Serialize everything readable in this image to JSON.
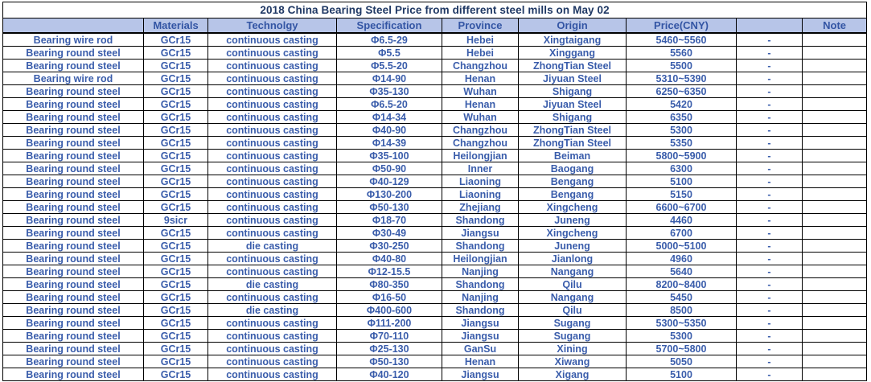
{
  "title": "2018 China Bearing Steel Price from different steel mills on May 02",
  "colors": {
    "title_text": "#1f3864",
    "header_bg": "#b7c5e8",
    "header_text": "#3355a4",
    "data_text": "#3a5dab",
    "border": "#000000"
  },
  "table": {
    "columns": [
      "",
      "Materials",
      "Technolgy",
      "Specification",
      "Province",
      "Origin",
      "Price(CNY)",
      "",
      "Note"
    ],
    "rows": [
      [
        "Bearing wire rod",
        "GCr15",
        "continuous casting",
        "Φ6.5-29",
        "Hebei",
        "Xingtaigang",
        "5460~5560",
        "-",
        ""
      ],
      [
        "Bearing round steel",
        "GCr15",
        "continuous casting",
        "Φ5.5",
        "Hebei",
        "Xinggang",
        "5560",
        "-",
        ""
      ],
      [
        "Bearing round steel",
        "GCr15",
        "continuous casting",
        "Φ5.5-20",
        "Changzhou",
        "ZhongTian Steel",
        "5500",
        "-",
        ""
      ],
      [
        "Bearing wire rod",
        "GCr15",
        "continuous casting",
        "Φ14-90",
        "Henan",
        "Jiyuan Steel",
        "5310~5390",
        "-",
        ""
      ],
      [
        "Bearing round steel",
        "GCr15",
        "continuous casting",
        "Φ35-130",
        "Wuhan",
        "Shigang",
        "6250~6350",
        "-",
        ""
      ],
      [
        "Bearing round steel",
        "GCr15",
        "continuous casting",
        "Φ6.5-20",
        "Henan",
        "Jiyuan Steel",
        "5420",
        "-",
        ""
      ],
      [
        "Bearing round steel",
        "GCr15",
        "continuous casting",
        "Φ14-34",
        "Wuhan",
        "Shigang",
        "6350",
        "-",
        ""
      ],
      [
        "Bearing round steel",
        "GCr15",
        "continuous casting",
        "Φ40-90",
        "Changzhou",
        "ZhongTian Steel",
        "5300",
        "-",
        ""
      ],
      [
        "Bearing round steel",
        "GCr15",
        "continuous casting",
        "Φ14-39",
        "Changzhou",
        "ZhongTian Steel",
        "5350",
        "-",
        ""
      ],
      [
        "Bearing round steel",
        "GCr15",
        "continuous casting",
        "Φ35-100",
        "Heilongjian",
        "Beiman",
        "5800~5900",
        "-",
        ""
      ],
      [
        "Bearing round steel",
        "GCr15",
        "continuous casting",
        "Φ50-90",
        "Inner",
        "Baogang",
        "6300",
        "-",
        ""
      ],
      [
        "Bearing round steel",
        "GCr15",
        "continuous casting",
        "Φ40-129",
        "Liaoning",
        "Bengang",
        "5100",
        "-",
        ""
      ],
      [
        "Bearing round steel",
        "GCr15",
        "continuous casting",
        "Φ130-200",
        "Liaoning",
        "Bengang",
        "5150",
        "-",
        ""
      ],
      [
        "Bearing round steel",
        "GCr15",
        "continuous casting",
        "Φ50-130",
        "Zhejiang",
        "Xingcheng",
        "6600~6700",
        "-",
        ""
      ],
      [
        "Bearing round steel",
        "9sicr",
        "continuous casting",
        "Φ18-70",
        "Shandong",
        "Juneng",
        "4460",
        "-",
        ""
      ],
      [
        "Bearing round steel",
        "GCr15",
        "continuous casting",
        "Φ30-49",
        "Jiangsu",
        "Xingcheng",
        "6700",
        "-",
        ""
      ],
      [
        "Bearing round steel",
        "GCr15",
        "die casting",
        "Φ30-250",
        "Shandong",
        "Juneng",
        "5000~5100",
        "-",
        ""
      ],
      [
        "Bearing round steel",
        "GCr15",
        "continuous casting",
        "Φ40-80",
        "Heilongjian",
        "Jianlong",
        "4960",
        "-",
        ""
      ],
      [
        "Bearing round steel",
        "GCr15",
        "continuous casting",
        "Φ12-15.5",
        "Nanjing",
        "Nangang",
        "5640",
        "-",
        ""
      ],
      [
        "Bearing round steel",
        "GCr15",
        "die casting",
        "Φ80-350",
        "Shandong",
        "Qilu",
        "8200~8400",
        "-",
        ""
      ],
      [
        "Bearing round steel",
        "GCr15",
        "continuous casting",
        "Φ16-50",
        "Nanjing",
        "Nangang",
        "5450",
        "-",
        ""
      ],
      [
        "Bearing round steel",
        "GCr15",
        "die casting",
        "Φ400-600",
        "Shandong",
        "Qilu",
        "8500",
        "-",
        ""
      ],
      [
        "Bearing round steel",
        "GCr15",
        "continuous casting",
        "Φ111-200",
        "Jiangsu",
        "Sugang",
        "5300~5350",
        "-",
        ""
      ],
      [
        "Bearing round steel",
        "GCr15",
        "continuous casting",
        "Φ70-110",
        "Jiangsu",
        "Sugang",
        "5300",
        "-",
        ""
      ],
      [
        "Bearing round steel",
        "GCr15",
        "continuous casting",
        "Φ25-130",
        "GanSu",
        "Xining",
        "5700~5800",
        "-",
        ""
      ],
      [
        "Bearing round steel",
        "GCr15",
        "continuous casting",
        "Φ50-130",
        "Henan",
        "Xiwang",
        "5050",
        "-",
        ""
      ],
      [
        "Bearing round steel",
        "GCr15",
        "continuous casting",
        "Φ40-120",
        "Jiangsu",
        "Xigang",
        "5100",
        "-",
        ""
      ]
    ]
  }
}
